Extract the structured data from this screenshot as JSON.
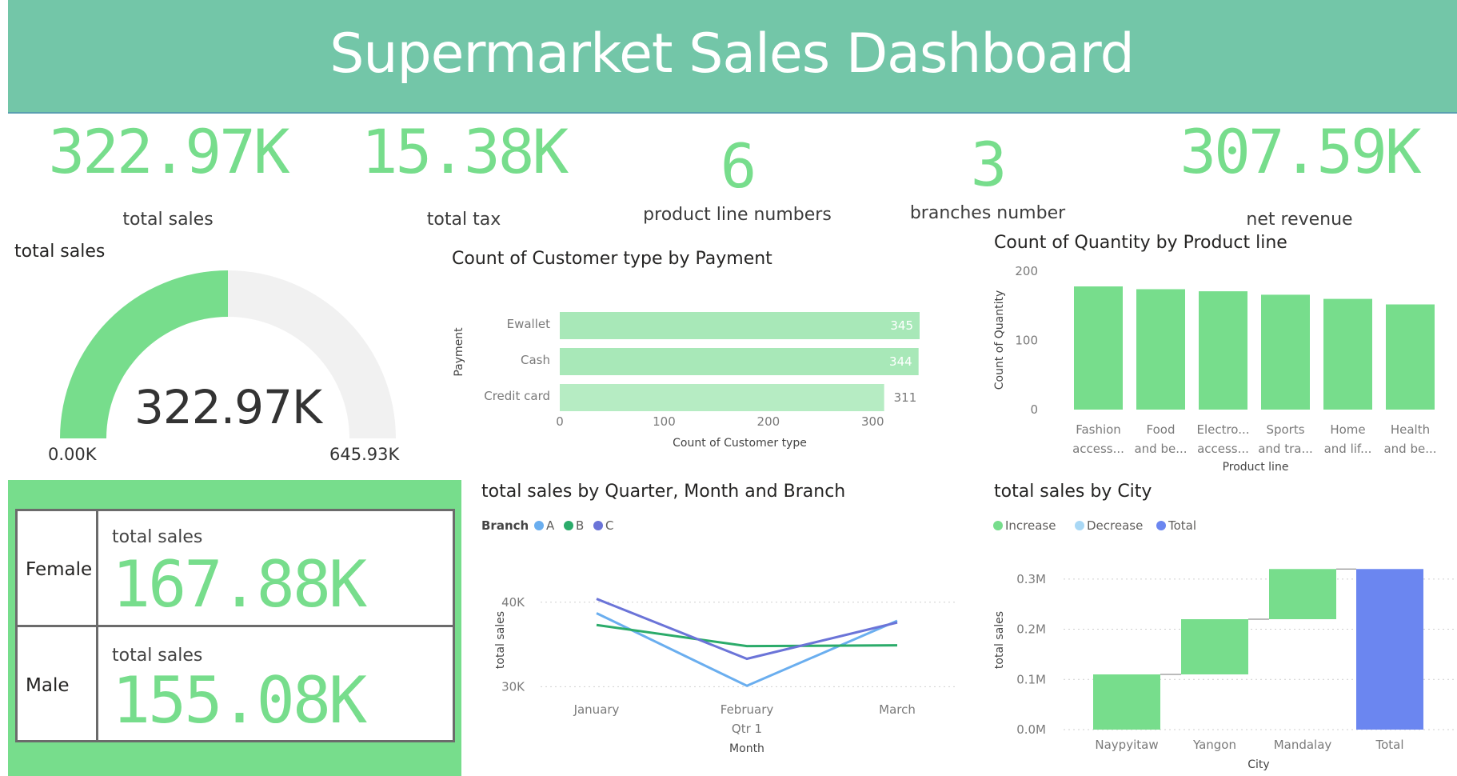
{
  "header": {
    "title": "Supermarket Sales Dashboard"
  },
  "kpis": [
    {
      "value": "322.97K",
      "label": "total sales"
    },
    {
      "value": "15.38K",
      "label": "total tax"
    },
    {
      "value": "6",
      "label": "product line numbers"
    },
    {
      "value": "3",
      "label": "branches number"
    },
    {
      "value": "307.59K",
      "label": "net revenue"
    }
  ],
  "gauge": {
    "title": "total sales",
    "value_label": "322.97K",
    "min_label": "0.00K",
    "max_label": "645.93K",
    "value": 322.97,
    "min": 0,
    "max": 645.93
  },
  "gender": {
    "rows": [
      {
        "label": "Female",
        "sub": "total sales",
        "value": "167.88K"
      },
      {
        "label": "Male",
        "sub": "total sales",
        "value": "155.08K"
      }
    ]
  },
  "colors": {
    "accent": "#77dd8c",
    "header": "#73c6a8",
    "bar_light": "#a8e8b8",
    "total": "#6b86f0"
  },
  "chart_data": [
    {
      "type": "bar",
      "orientation": "horizontal",
      "title": "Count of Customer type by Payment",
      "categories": [
        "Ewallet",
        "Cash",
        "Credit card"
      ],
      "values": [
        345,
        344,
        311
      ],
      "value_labels": [
        "345",
        "344",
        "311"
      ],
      "xlabel": "Count of Customer type",
      "ylabel": "Payment",
      "xlim": [
        0,
        345
      ],
      "ticks": [
        "0",
        "100",
        "200",
        "300"
      ],
      "tick_values": [
        0,
        100,
        200,
        300
      ]
    },
    {
      "type": "bar",
      "title": "Count of Quantity by Product line",
      "categories": [
        [
          "Fashion",
          "access..."
        ],
        [
          "Food",
          "and be..."
        ],
        [
          "Electro...",
          "access..."
        ],
        [
          "Sports",
          "and tra..."
        ],
        [
          "Home",
          "and lif..."
        ],
        [
          "Health",
          "and be..."
        ]
      ],
      "values": [
        178,
        174,
        171,
        166,
        160,
        152
      ],
      "xlabel": "Product line",
      "ylabel": "Count of Quantity",
      "ylim": [
        0,
        200
      ],
      "ticks": [
        "0",
        "100",
        "200"
      ],
      "tick_values": [
        0,
        100,
        200
      ]
    },
    {
      "type": "line",
      "title": "total sales by Quarter, Month and Branch",
      "legend_title": "Branch",
      "categories": [
        "January",
        "February",
        "March"
      ],
      "category_group": "Qtr 1",
      "xlabel": "Month",
      "ylabel": "total sales",
      "ylim": [
        27000,
        45000
      ],
      "ticks": [
        "30K",
        "40K"
      ],
      "tick_values": [
        30000,
        40000
      ],
      "series": [
        {
          "name": "A",
          "color": "#6aaeef",
          "values": [
            38700,
            30100,
            37800
          ]
        },
        {
          "name": "B",
          "color": "#2bab6a",
          "values": [
            37300,
            34800,
            34900
          ]
        },
        {
          "name": "C",
          "color": "#6b74d8",
          "values": [
            40400,
            33300,
            37600
          ]
        }
      ]
    },
    {
      "type": "bar",
      "subtype": "waterfall",
      "title": "total sales by City",
      "legend": [
        {
          "name": "Increase",
          "color": "#77dd8c"
        },
        {
          "name": "Decrease",
          "color": "#a9d8f5"
        },
        {
          "name": "Total",
          "color": "#6b86f0"
        }
      ],
      "categories": [
        "Naypyitaw",
        "Yangon",
        "Mandalay",
        "Total"
      ],
      "values": [
        0.11,
        0.11,
        0.1,
        0.32
      ],
      "xlabel": "City",
      "ylabel": "total sales",
      "ylim": [
        0,
        0.33
      ],
      "ticks": [
        "0.0M",
        "0.1M",
        "0.2M",
        "0.3M"
      ],
      "tick_values": [
        0,
        0.1,
        0.2,
        0.3
      ]
    }
  ]
}
